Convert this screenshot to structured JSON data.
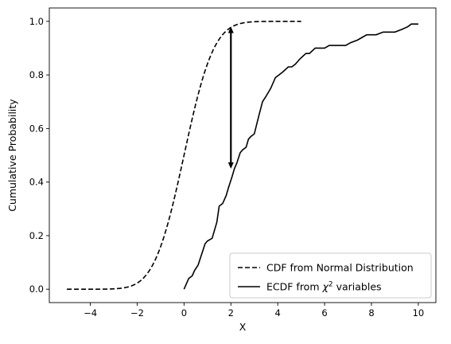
{
  "chart_data": {
    "type": "line",
    "title": "",
    "xlabel": "X",
    "ylabel": "Cumulative Probability",
    "xlim": [
      -5.75,
      10.75
    ],
    "ylim": [
      -0.05,
      1.05
    ],
    "xticks": [
      -4,
      -2,
      0,
      2,
      4,
      6,
      8,
      10
    ],
    "yticks": [
      0.0,
      0.2,
      0.4,
      0.6,
      0.8,
      1.0
    ],
    "xtick_labels": [
      "−4",
      "−2",
      "0",
      "2",
      "4",
      "6",
      "8",
      "10"
    ],
    "ytick_labels": [
      "0.0",
      "0.2",
      "0.4",
      "0.6",
      "0.8",
      "1.0"
    ],
    "grid": false,
    "legend_position": "lower-right",
    "series": [
      {
        "name": "CDF from Normal Distribution",
        "style": "dashed",
        "color": "#000000",
        "function": "normal_cdf",
        "x_range": [
          -5,
          5
        ]
      },
      {
        "name": "ECDF from χ² variables",
        "legend_prefix": "ECDF from ",
        "legend_symbol": "χ",
        "legend_superscript": "2",
        "legend_suffix": " variables",
        "style": "solid",
        "color": "#000000",
        "x": [
          0.0,
          0.1,
          0.2,
          0.35,
          0.45,
          0.6,
          0.75,
          0.9,
          1.0,
          1.2,
          1.4,
          1.5,
          1.65,
          1.8,
          1.9,
          2.05,
          2.15,
          2.25,
          2.4,
          2.5,
          2.65,
          2.75,
          2.85,
          3.0,
          3.2,
          3.35,
          3.5,
          3.7,
          3.9,
          4.05,
          4.2,
          4.45,
          4.6,
          4.75,
          4.95,
          5.2,
          5.35,
          5.6,
          5.8,
          6.0,
          6.2,
          6.35,
          6.6,
          6.9,
          7.1,
          7.4,
          7.6,
          7.8,
          8.0,
          8.2,
          8.5,
          8.7,
          9.0,
          9.3,
          9.55,
          9.7,
          9.85,
          10.0
        ],
        "y": [
          0.0,
          0.02,
          0.04,
          0.05,
          0.07,
          0.09,
          0.13,
          0.17,
          0.18,
          0.19,
          0.25,
          0.31,
          0.32,
          0.35,
          0.38,
          0.42,
          0.45,
          0.47,
          0.51,
          0.52,
          0.53,
          0.56,
          0.57,
          0.58,
          0.65,
          0.7,
          0.72,
          0.75,
          0.79,
          0.8,
          0.81,
          0.83,
          0.83,
          0.84,
          0.86,
          0.88,
          0.88,
          0.9,
          0.9,
          0.9,
          0.91,
          0.91,
          0.91,
          0.91,
          0.92,
          0.93,
          0.94,
          0.95,
          0.95,
          0.95,
          0.96,
          0.96,
          0.96,
          0.97,
          0.98,
          0.99,
          0.99,
          0.99
        ]
      }
    ],
    "annotations": [
      {
        "type": "double-arrow",
        "x": 2.0,
        "y_from": 0.45,
        "y_to": 0.98
      }
    ]
  }
}
